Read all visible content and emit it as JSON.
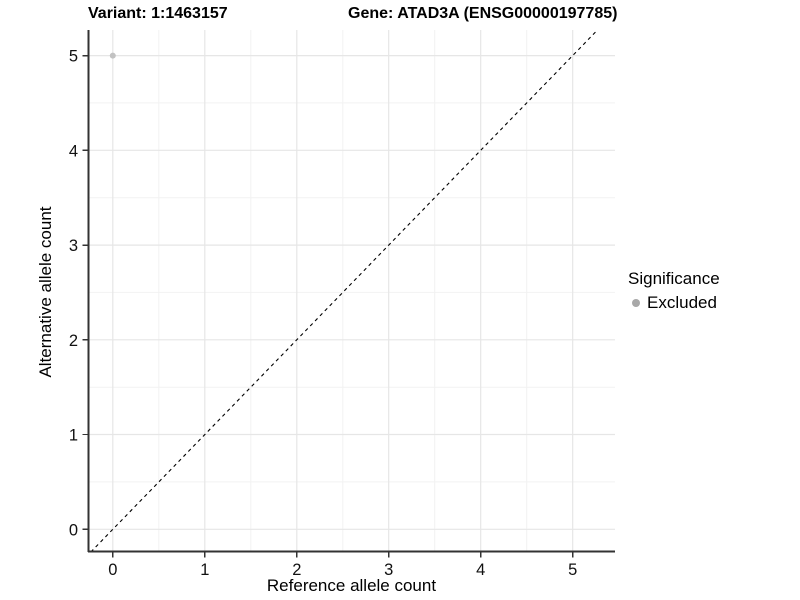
{
  "titles": {
    "variant": "Variant: 1:1463157",
    "gene": "Gene: ATAD3A (ENSG00000197785)"
  },
  "axes": {
    "x": {
      "label": "Reference allele count"
    },
    "y": {
      "label": "Alternative allele count"
    }
  },
  "legend": {
    "title": "Significance",
    "items": [
      {
        "label": "Excluded",
        "color": "#a8a8a8",
        "marker": "circle-icon"
      }
    ]
  },
  "colors": {
    "background": "#ffffff",
    "grid_major": "#e6e6e6",
    "grid_minor": "#f2f2f2",
    "axis_line": "#333333",
    "tick_mark": "#333333",
    "reference_line": "#000000",
    "point": "#c2c2c2",
    "legend_point": "#a8a8a8",
    "text": "#000000"
  },
  "chart_data": {
    "type": "scatter",
    "title": "Variant: 1:1463157    Gene: ATAD3A (ENSG00000197785)",
    "xlabel": "Reference allele count",
    "ylabel": "Alternative allele count",
    "xlim": [
      -0.27,
      5.46
    ],
    "ylim": [
      -0.24,
      5.27
    ],
    "xticks": [
      0,
      1,
      2,
      3,
      4,
      5
    ],
    "yticks": [
      0,
      1,
      2,
      3,
      4,
      5
    ],
    "grid": true,
    "legend_position": "right",
    "legend_title": "Significance",
    "series": [
      {
        "name": "Excluded",
        "color": "#c2c2c2",
        "marker_radius": 3,
        "points": [
          {
            "x": 0,
            "y": 5
          }
        ]
      }
    ],
    "reference_line": {
      "type": "identity",
      "equation": "y = x",
      "style": "dashed",
      "color": "#000000"
    }
  }
}
